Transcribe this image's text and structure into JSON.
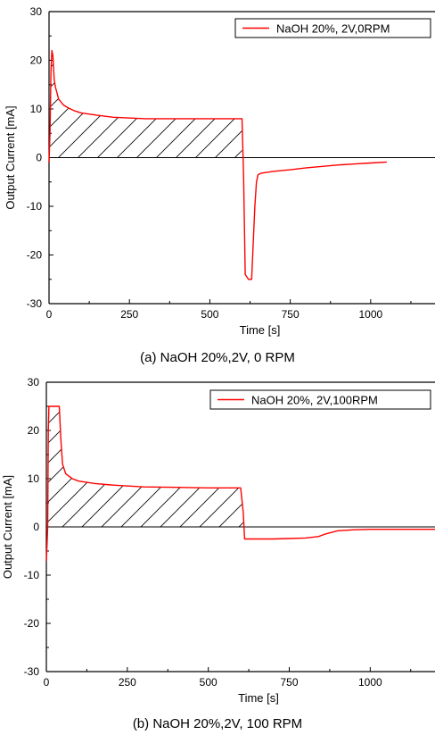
{
  "colors": {
    "series": "#ff0000",
    "axis": "#000000",
    "hatch": "#000000",
    "background": "#ffffff"
  },
  "chart_data": [
    {
      "type": "line",
      "xlabel": "Time [s]",
      "ylabel": "Output Current [mA]",
      "xlim": [
        0,
        1200
      ],
      "ylim": [
        -30,
        30
      ],
      "xticks": [
        0,
        250,
        500,
        750,
        1000
      ],
      "yticks": [
        -30,
        -20,
        -10,
        0,
        10,
        20,
        30
      ],
      "legend_position": "top-right",
      "caption": "(a) NaOH 20%,2V,  0 RPM",
      "hatched_region": {
        "description_x_range": [
          0,
          610
        ]
      },
      "series": [
        {
          "name": "NaOH 20%, 2V,0RPM",
          "x": [
            0,
            3,
            6,
            9,
            12,
            16,
            20,
            30,
            45,
            60,
            80,
            100,
            150,
            200,
            300,
            400,
            500,
            600,
            605,
            610,
            620,
            630,
            640,
            645,
            650,
            660,
            680,
            700,
            750,
            800,
            850,
            900,
            950,
            1000,
            1050
          ],
          "y": [
            -1,
            5,
            18,
            22,
            21,
            16,
            14.5,
            12,
            10.8,
            10.2,
            9.6,
            9.2,
            8.7,
            8.3,
            8.0,
            8.0,
            8.0,
            8.0,
            -4,
            -24,
            -25,
            -25,
            -10,
            -5,
            -3.5,
            -3.2,
            -3.0,
            -2.8,
            -2.5,
            -2.1,
            -1.8,
            -1.5,
            -1.3,
            -1.1,
            -0.9
          ]
        }
      ]
    },
    {
      "type": "line",
      "xlabel": "Time [s]",
      "ylabel": "Output Current [mA]",
      "xlim": [
        0,
        1200
      ],
      "ylim": [
        -30,
        30
      ],
      "xticks": [
        0,
        250,
        500,
        750,
        1000
      ],
      "yticks": [
        -30,
        -20,
        -10,
        0,
        10,
        20,
        30
      ],
      "legend_position": "top-right",
      "caption": "(b) NaOH 20%,2V, 100 RPM",
      "hatched_region": {
        "description_x_range": [
          0,
          610
        ]
      },
      "series": [
        {
          "name": "NaOH 20%, 2V,100RPM",
          "x": [
            0,
            2,
            4,
            6,
            8,
            40,
            45,
            50,
            60,
            80,
            100,
            150,
            200,
            300,
            400,
            500,
            600,
            608,
            612,
            650,
            700,
            750,
            800,
            840,
            860,
            900,
            950,
            1000,
            1100,
            1200
          ],
          "y": [
            -7,
            -4,
            0,
            20,
            25,
            25,
            18,
            13,
            11,
            10,
            9.5,
            9.0,
            8.7,
            8.3,
            8.2,
            8.1,
            8.1,
            3,
            -2.5,
            -2.5,
            -2.5,
            -2.4,
            -2.3,
            -2.0,
            -1.5,
            -0.8,
            -0.6,
            -0.5,
            -0.5,
            -0.5
          ]
        }
      ]
    }
  ]
}
